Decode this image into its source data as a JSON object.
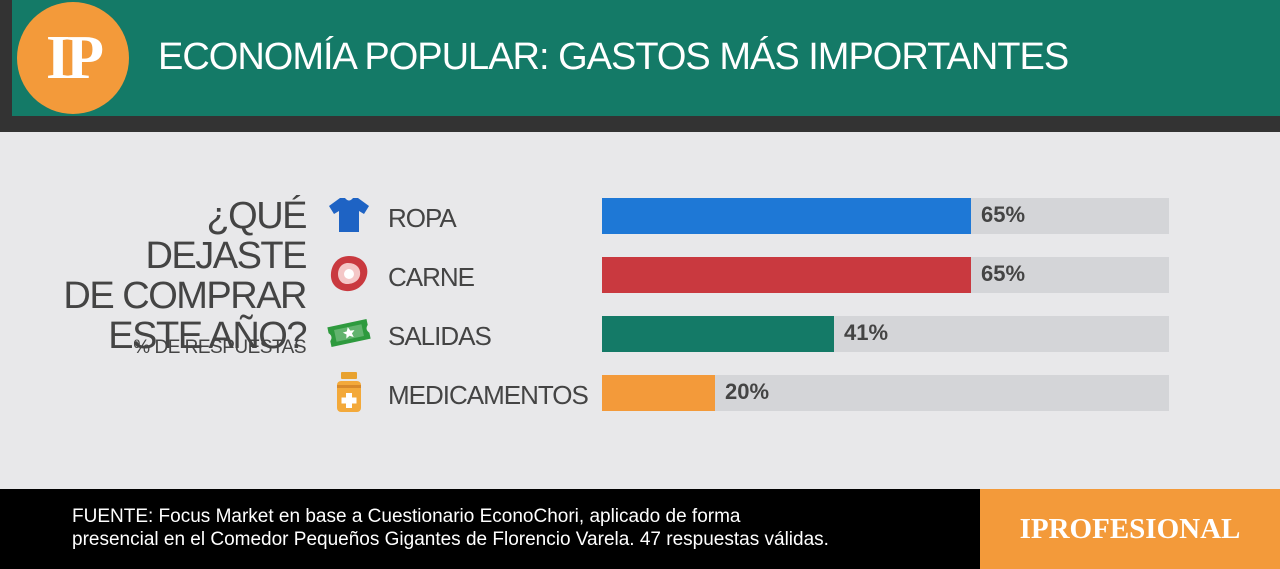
{
  "header": {
    "logo_text": "IP",
    "title": "ECONOMÍA POPULAR: GASTOS MÁS IMPORTANTES"
  },
  "question": {
    "lines": [
      "¿QUÉ DEJASTE",
      "DE COMPRAR",
      "ESTE AÑO?"
    ],
    "subtitle": "% DE RESPUESTAS"
  },
  "chart_data": {
    "type": "bar",
    "orientation": "horizontal",
    "categories": [
      "ROPA",
      "CARNE",
      "SALIDAS",
      "MEDICAMENTOS"
    ],
    "values": [
      65,
      65,
      41,
      20
    ],
    "value_labels": [
      "65%",
      "65%",
      "41%",
      "20%"
    ],
    "xlim": [
      0,
      100
    ],
    "colors": [
      "#1e78d6",
      "#c9393f",
      "#147a67",
      "#f39a3a"
    ],
    "icons": [
      "shirt-icon",
      "meat-icon",
      "ticket-icon",
      "medicine-bottle-icon"
    ]
  },
  "footer": {
    "source_line1": "FUENTE:  Focus Market en base a Cuestionario EconoChori, aplicado de forma",
    "source_line2": "presencial en el Comedor Pequeños Gigantes de Florencio Varela. 47 respuestas válidas.",
    "brand": "IPROFESIONAL"
  }
}
